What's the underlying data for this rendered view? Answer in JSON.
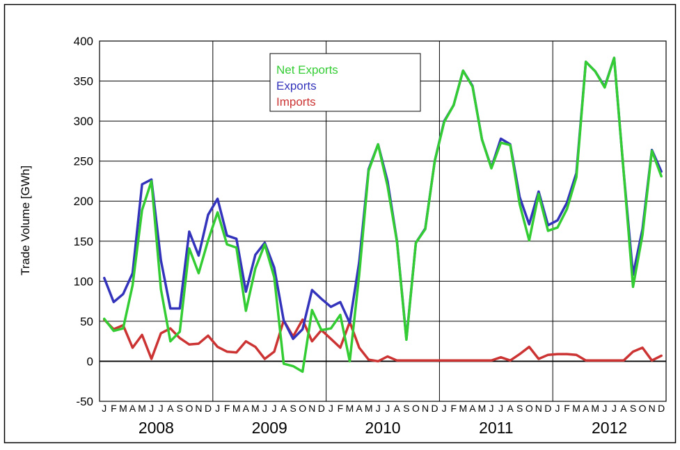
{
  "chart_data": {
    "type": "line",
    "title": "",
    "xlabel": "",
    "ylabel": "Trade Volume [GWh]",
    "ylim": [
      -50,
      400
    ],
    "yticks": [
      -50,
      0,
      50,
      100,
      150,
      200,
      250,
      300,
      350,
      400
    ],
    "grid": true,
    "legend_position": "top-center",
    "month_labels": [
      "J",
      "F",
      "M",
      "A",
      "M",
      "J",
      "J",
      "A",
      "S",
      "O",
      "N",
      "D"
    ],
    "years": [
      "2008",
      "2009",
      "2010",
      "2011",
      "2012"
    ],
    "x": [
      "2008-01",
      "2008-02",
      "2008-03",
      "2008-04",
      "2008-05",
      "2008-06",
      "2008-07",
      "2008-08",
      "2008-09",
      "2008-10",
      "2008-11",
      "2008-12",
      "2009-01",
      "2009-02",
      "2009-03",
      "2009-04",
      "2009-05",
      "2009-06",
      "2009-07",
      "2009-08",
      "2009-09",
      "2009-10",
      "2009-11",
      "2009-12",
      "2010-01",
      "2010-02",
      "2010-03",
      "2010-04",
      "2010-05",
      "2010-06",
      "2010-07",
      "2010-08",
      "2010-09",
      "2010-10",
      "2010-11",
      "2010-12",
      "2011-01",
      "2011-02",
      "2011-03",
      "2011-04",
      "2011-05",
      "2011-06",
      "2011-07",
      "2011-08",
      "2011-09",
      "2011-10",
      "2011-11",
      "2011-12",
      "2012-01",
      "2012-02",
      "2012-03",
      "2012-04",
      "2012-05",
      "2012-06",
      "2012-07",
      "2012-08",
      "2012-09",
      "2012-10",
      "2012-11",
      "2012-12"
    ],
    "series": [
      {
        "name": "Exports",
        "color": "#3333bb",
        "values": [
          104,
          74,
          84,
          110,
          221,
          227,
          126,
          66,
          66,
          162,
          132,
          183,
          203,
          157,
          153,
          87,
          133,
          148,
          117,
          51,
          28,
          40,
          89,
          78,
          68,
          74,
          48,
          124,
          240,
          271,
          225,
          150,
          28,
          148,
          166,
          250,
          300,
          320,
          363,
          344,
          277,
          242,
          278,
          271,
          205,
          171,
          212,
          170,
          176,
          198,
          235,
          374,
          362,
          343,
          379,
          237,
          108,
          165,
          264,
          237
        ]
      },
      {
        "name": "Imports",
        "color": "#cc3333",
        "values": [
          52,
          40,
          45,
          17,
          33,
          3,
          35,
          41,
          29,
          21,
          22,
          32,
          18,
          12,
          11,
          25,
          18,
          3,
          12,
          51,
          31,
          52,
          25,
          39,
          28,
          17,
          49,
          17,
          2,
          0,
          6,
          1,
          1,
          1,
          1,
          1,
          1,
          1,
          1,
          1,
          1,
          1,
          5,
          1,
          9,
          18,
          3,
          8,
          9,
          9,
          8,
          1,
          1,
          1,
          1,
          1,
          12,
          17,
          1,
          7
        ]
      },
      {
        "name": "Net Exports",
        "color": "#33cc33",
        "values": [
          53,
          38,
          41,
          95,
          189,
          225,
          90,
          25,
          37,
          141,
          110,
          151,
          186,
          146,
          142,
          63,
          116,
          146,
          105,
          -3,
          -6,
          -13,
          64,
          39,
          41,
          58,
          0,
          108,
          238,
          271,
          219,
          149,
          27,
          148,
          165,
          250,
          299,
          320,
          363,
          343,
          277,
          241,
          273,
          270,
          196,
          151,
          209,
          163,
          167,
          190,
          230,
          374,
          362,
          342,
          379,
          237,
          93,
          158,
          263,
          231
        ]
      }
    ]
  }
}
